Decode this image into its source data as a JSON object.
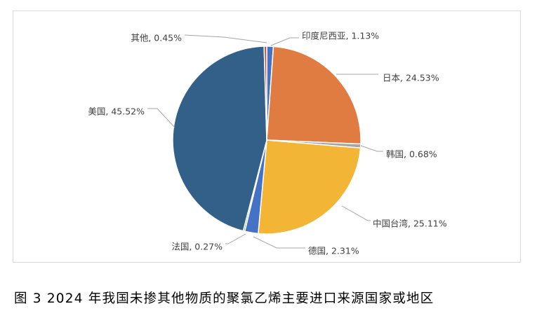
{
  "chart_data": {
    "type": "pie",
    "title": "",
    "legend": "none",
    "slices": [
      {
        "name": "印度尼西亚",
        "value": 1.13,
        "label": "印度尼西亚, 1.13%",
        "color": "#4472c4"
      },
      {
        "name": "日本",
        "value": 24.53,
        "label": "日本, 24.53%",
        "color": "#e07b42"
      },
      {
        "name": "韩国",
        "value": 0.68,
        "label": "韩国, 0.68%",
        "color": "#a5a5a5"
      },
      {
        "name": "中国台湾",
        "value": 25.11,
        "label": "中国台湾, 25.11%",
        "color": "#f2b535"
      },
      {
        "name": "德国",
        "value": 2.31,
        "label": "德国, 2.31%",
        "color": "#4472c4"
      },
      {
        "name": "法国",
        "value": 0.27,
        "label": "法国, 0.27%",
        "color": "#70ad47"
      },
      {
        "name": "美国",
        "value": 45.52,
        "label": "美国, 45.52%",
        "color": "#336089"
      },
      {
        "name": "其他",
        "value": 0.45,
        "label": "其他, 0.45%",
        "color": "#c0504d"
      }
    ]
  },
  "caption": "图 3 2024 年我国未掺其他物质的聚氯乙烯主要进口来源国家或地区"
}
